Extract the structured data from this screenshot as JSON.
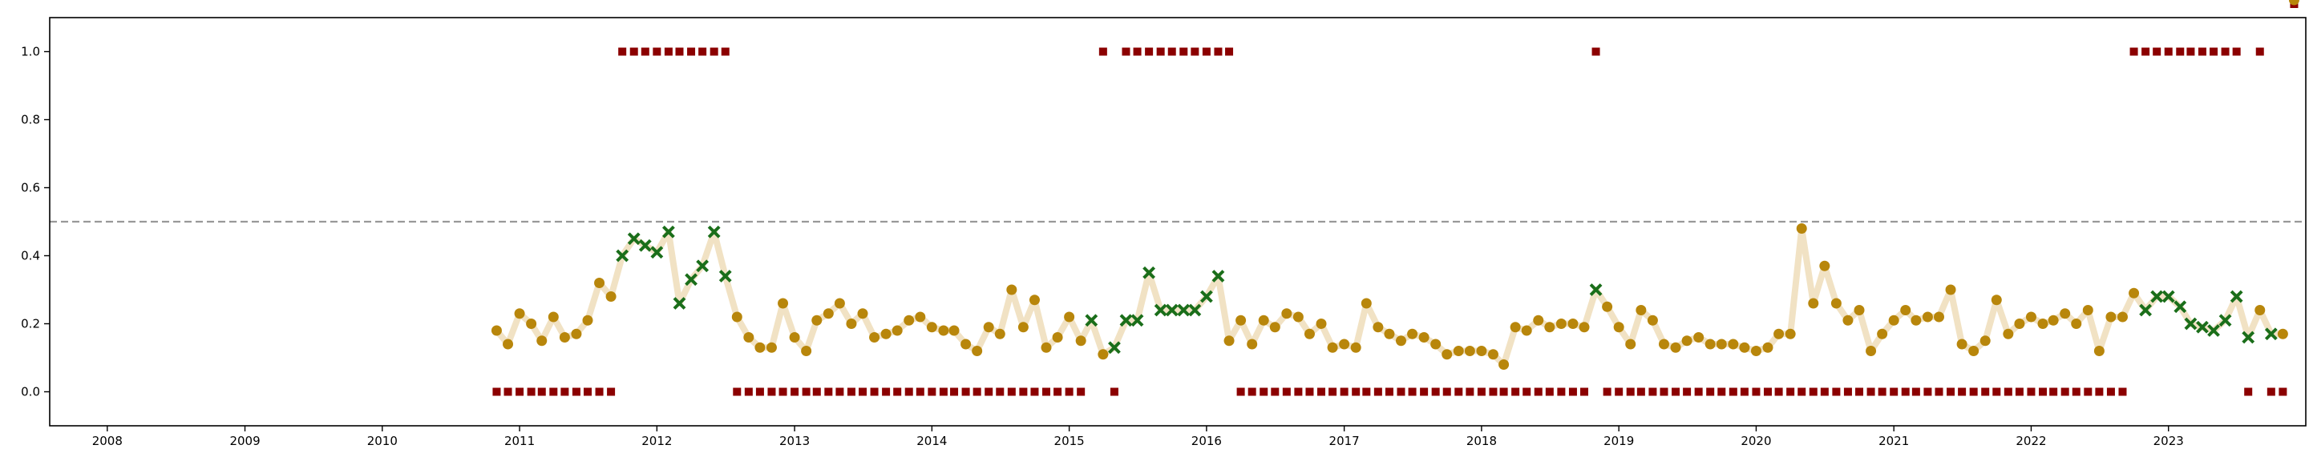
{
  "chart_data": {
    "type": "scatter",
    "title": "",
    "xlabel": "",
    "ylabel": "",
    "x_tick_labels": [
      "2008",
      "2009",
      "2010",
      "2011",
      "2012",
      "2013",
      "2014",
      "2015",
      "2016",
      "2017",
      "2018",
      "2019",
      "2020",
      "2021",
      "2022",
      "2023"
    ],
    "y_tick_labels": [
      "0.0",
      "0.2",
      "0.4",
      "0.6",
      "0.8",
      "1.0"
    ],
    "xlim": [
      "2007-08-01",
      "2024-01-01"
    ],
    "ylim": [
      -0.1,
      1.1
    ],
    "grid": false,
    "legend": "none",
    "threshold": 0.5,
    "threshold_color": "#999999",
    "line_color": "#f1e2c4",
    "normal_color": "#b8860b",
    "anomaly_color": "#1a6e1a",
    "label_color": "#8b0000",
    "series": {
      "score_dates": [
        "2010-11",
        "2010-12",
        "2011-01",
        "2011-02",
        "2011-03",
        "2011-04",
        "2011-05",
        "2011-06",
        "2011-07",
        "2011-08",
        "2011-09",
        "2011-10",
        "2011-11",
        "2011-12",
        "2012-01",
        "2012-02",
        "2012-03",
        "2012-04",
        "2012-05",
        "2012-06",
        "2012-07",
        "2012-08",
        "2012-09",
        "2012-10",
        "2012-11",
        "2012-12",
        "2013-01",
        "2013-02",
        "2013-03",
        "2013-04",
        "2013-05",
        "2013-06",
        "2013-07",
        "2013-08",
        "2013-09",
        "2013-10",
        "2013-11",
        "2013-12",
        "2014-01",
        "2014-02",
        "2014-03",
        "2014-04",
        "2014-05",
        "2014-06",
        "2014-07",
        "2014-08",
        "2014-09",
        "2014-10",
        "2014-11",
        "2014-12",
        "2015-01",
        "2015-02",
        "2015-03",
        "2015-04",
        "2015-05",
        "2015-06",
        "2015-07",
        "2015-08",
        "2015-09",
        "2015-10",
        "2015-11",
        "2015-12",
        "2016-01",
        "2016-02",
        "2016-03",
        "2016-04",
        "2016-05",
        "2016-06",
        "2016-07",
        "2016-08",
        "2016-09",
        "2016-10",
        "2016-11",
        "2016-12",
        "2017-01",
        "2017-02",
        "2017-03",
        "2017-04",
        "2017-05",
        "2017-06",
        "2017-07",
        "2017-08",
        "2017-09",
        "2017-10",
        "2017-11",
        "2017-12",
        "2018-01",
        "2018-02",
        "2018-03",
        "2018-04",
        "2018-05",
        "2018-06",
        "2018-07",
        "2018-08",
        "2018-09",
        "2018-10",
        "2018-11",
        "2018-12",
        "2019-01",
        "2019-02",
        "2019-03",
        "2019-04",
        "2019-05",
        "2019-06",
        "2019-07",
        "2019-08",
        "2019-09",
        "2019-10",
        "2019-11",
        "2019-12",
        "2020-01",
        "2020-02",
        "2020-03",
        "2020-04",
        "2020-05",
        "2020-06",
        "2020-07",
        "2020-08",
        "2020-09",
        "2020-10",
        "2020-11",
        "2020-12",
        "2021-01",
        "2021-02",
        "2021-03",
        "2021-04",
        "2021-05",
        "2021-06",
        "2021-07",
        "2021-08",
        "2021-09",
        "2021-10",
        "2021-11",
        "2021-12",
        "2022-01",
        "2022-02",
        "2022-03",
        "2022-04",
        "2022-05",
        "2022-06",
        "2022-07",
        "2022-08",
        "2022-09",
        "2022-10",
        "2022-11",
        "2022-12",
        "2023-01",
        "2023-02",
        "2023-03",
        "2023-04",
        "2023-05",
        "2023-06",
        "2023-07",
        "2023-08",
        "2023-09",
        "2023-10",
        "2023-11",
        "2023-12"
      ],
      "score_values": [
        0.18,
        0.14,
        0.23,
        0.2,
        0.15,
        0.22,
        0.16,
        0.17,
        0.21,
        0.32,
        0.28,
        0.4,
        0.45,
        0.43,
        0.41,
        0.47,
        0.26,
        0.33,
        0.37,
        0.47,
        0.34,
        0.22,
        0.16,
        0.13,
        0.13,
        0.26,
        0.16,
        0.12,
        0.21,
        0.23,
        0.26,
        0.2,
        0.23,
        0.16,
        0.17,
        0.18,
        0.21,
        0.22,
        0.19,
        0.18,
        0.18,
        0.14,
        0.12,
        0.19,
        0.17,
        0.3,
        0.19,
        0.27,
        0.13,
        0.16,
        0.22,
        0.15,
        0.21,
        0.11,
        0.13,
        0.21,
        0.21,
        0.35,
        0.24,
        0.24,
        0.24,
        0.24,
        0.28,
        0.34,
        0.15,
        0.21,
        0.14,
        0.21,
        0.19,
        0.23,
        0.22,
        0.17,
        0.2,
        0.13,
        0.14,
        0.13,
        0.26,
        0.19,
        0.17,
        0.15,
        0.17,
        0.16,
        0.14,
        0.11,
        0.12,
        0.12,
        0.12,
        0.11,
        0.08,
        0.19,
        0.18,
        0.21,
        0.19,
        0.2,
        0.2,
        0.19,
        0.3,
        0.25,
        0.19,
        0.14,
        0.24,
        0.21,
        0.14,
        0.13,
        0.15,
        0.16,
        0.14,
        0.14,
        0.14,
        0.13,
        0.12,
        0.13,
        0.17,
        0.17,
        0.48,
        0.26,
        0.37,
        0.26,
        0.21,
        0.24,
        0.12,
        0.17,
        0.21,
        0.24,
        0.21,
        0.22,
        0.22,
        0.3,
        0.14,
        0.12,
        0.15,
        0.27,
        0.17,
        0.2,
        0.22,
        0.2,
        0.21,
        0.23,
        0.2,
        0.24,
        0.12,
        0.22,
        0.22,
        0.29,
        0.24,
        0.28,
        0.28,
        0.25,
        0.2,
        0.19,
        0.18,
        0.21,
        0.28,
        0.16,
        0.24,
        0.17,
        0.17
      ],
      "score_is_anomaly": [
        0,
        0,
        0,
        0,
        0,
        0,
        0,
        0,
        0,
        0,
        0,
        1,
        1,
        1,
        1,
        1,
        1,
        1,
        1,
        1,
        1,
        0,
        0,
        0,
        0,
        0,
        0,
        0,
        0,
        0,
        0,
        0,
        0,
        0,
        0,
        0,
        0,
        0,
        0,
        0,
        0,
        0,
        0,
        0,
        0,
        0,
        0,
        0,
        0,
        0,
        0,
        0,
        1,
        0,
        1,
        1,
        1,
        1,
        1,
        1,
        1,
        1,
        1,
        1,
        0,
        0,
        0,
        0,
        0,
        0,
        0,
        0,
        0,
        0,
        0,
        0,
        0,
        0,
        0,
        0,
        0,
        0,
        0,
        0,
        0,
        0,
        0,
        0,
        0,
        0,
        0,
        0,
        0,
        0,
        0,
        0,
        1,
        0,
        0,
        0,
        0,
        0,
        0,
        0,
        0,
        0,
        0,
        0,
        0,
        0,
        0,
        0,
        0,
        0,
        0,
        0,
        0,
        0,
        0,
        0,
        0,
        0,
        0,
        0,
        0,
        0,
        0,
        0,
        0,
        0,
        0,
        0,
        0,
        0,
        0,
        0,
        0,
        0,
        0,
        0,
        0,
        0,
        0,
        0,
        1,
        1,
        1,
        1,
        1,
        1,
        1,
        1,
        1,
        1,
        0,
        1,
        0,
        0
      ],
      "label_dates": [
        "2010-11",
        "2010-12",
        "2011-01",
        "2011-02",
        "2011-03",
        "2011-04",
        "2011-05",
        "2011-06",
        "2011-07",
        "2011-08",
        "2011-09",
        "2011-10",
        "2011-11",
        "2011-12",
        "2012-01",
        "2012-02",
        "2012-03",
        "2012-04",
        "2012-05",
        "2012-06",
        "2012-07",
        "2012-08",
        "2012-09",
        "2012-10",
        "2012-11",
        "2012-12",
        "2013-01",
        "2013-02",
        "2013-03",
        "2013-04",
        "2013-05",
        "2013-06",
        "2013-07",
        "2013-08",
        "2013-09",
        "2013-10",
        "2013-11",
        "2013-12",
        "2014-01",
        "2014-02",
        "2014-03",
        "2014-04",
        "2014-05",
        "2014-06",
        "2014-07",
        "2014-08",
        "2014-09",
        "2014-10",
        "2014-11",
        "2014-12",
        "2015-01",
        "2015-02",
        "2015-04",
        "2015-05",
        "2015-06",
        "2015-07",
        "2015-08",
        "2015-09",
        "2015-10",
        "2015-11",
        "2015-12",
        "2016-01",
        "2016-02",
        "2016-03",
        "2016-04",
        "2016-05",
        "2016-06",
        "2016-07",
        "2016-08",
        "2016-09",
        "2016-10",
        "2016-11",
        "2016-12",
        "2017-01",
        "2017-02",
        "2017-03",
        "2017-04",
        "2017-05",
        "2017-06",
        "2017-07",
        "2017-08",
        "2017-09",
        "2017-10",
        "2017-11",
        "2017-12",
        "2018-01",
        "2018-02",
        "2018-03",
        "2018-04",
        "2018-05",
        "2018-06",
        "2018-07",
        "2018-08",
        "2018-09",
        "2018-10",
        "2018-11",
        "2018-12",
        "2019-01",
        "2019-02",
        "2019-03",
        "2019-04",
        "2019-05",
        "2019-06",
        "2019-07",
        "2019-08",
        "2019-09",
        "2019-10",
        "2019-11",
        "2019-12",
        "2020-01",
        "2020-02",
        "2020-03",
        "2020-04",
        "2020-05",
        "2020-06",
        "2020-07",
        "2020-08",
        "2020-09",
        "2020-10",
        "2020-11",
        "2020-12",
        "2021-01",
        "2021-02",
        "2021-03",
        "2021-04",
        "2021-05",
        "2021-06",
        "2021-07",
        "2021-08",
        "2021-09",
        "2021-10",
        "2021-11",
        "2021-12",
        "2022-01",
        "2022-02",
        "2022-03",
        "2022-04",
        "2022-05",
        "2022-06",
        "2022-07",
        "2022-08",
        "2022-09",
        "2022-10",
        "2022-11",
        "2022-12",
        "2023-01",
        "2023-02",
        "2023-03",
        "2023-04",
        "2023-05",
        "2023-06",
        "2023-07",
        "2023-08",
        "2023-09",
        "2023-10",
        "2023-11",
        "2023-12"
      ],
      "label_values": [
        0,
        0,
        0,
        0,
        0,
        0,
        0,
        0,
        0,
        0,
        0,
        1,
        1,
        1,
        1,
        1,
        1,
        1,
        1,
        1,
        1,
        0,
        0,
        0,
        0,
        0,
        0,
        0,
        0,
        0,
        0,
        0,
        0,
        0,
        0,
        0,
        0,
        0,
        0,
        0,
        0,
        0,
        0,
        0,
        0,
        0,
        0,
        0,
        0,
        0,
        0,
        0,
        1,
        0,
        1,
        1,
        1,
        1,
        1,
        1,
        1,
        1,
        1,
        1,
        0,
        0,
        0,
        0,
        0,
        0,
        0,
        0,
        0,
        0,
        0,
        0,
        0,
        0,
        0,
        0,
        0,
        0,
        0,
        0,
        0,
        0,
        0,
        0,
        0,
        0,
        0,
        0,
        0,
        0,
        0,
        1,
        0,
        0,
        0,
        0,
        0,
        0,
        0,
        0,
        0,
        0,
        0,
        0,
        0,
        0,
        0,
        0,
        0,
        0,
        0,
        0,
        0,
        0,
        0,
        0,
        0,
        0,
        0,
        0,
        0,
        0,
        0,
        0,
        0,
        0,
        0,
        0,
        0,
        0,
        0,
        0,
        0,
        0,
        0,
        0,
        0,
        0,
        1,
        1,
        1,
        1,
        1,
        1,
        1,
        1,
        1,
        1,
        0,
        1,
        0,
        0
      ]
    }
  }
}
